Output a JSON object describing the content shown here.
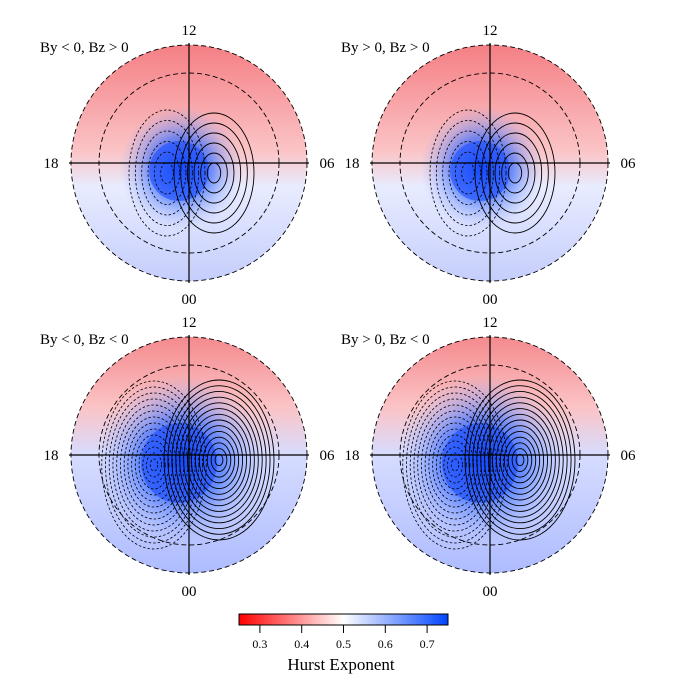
{
  "chart_data": {
    "type": "heatmap",
    "projection": "polar (magnetic local time)",
    "panels": [
      {
        "title": "By < 0, Bz > 0",
        "dipole": "dawn-shifted",
        "contours": "solid positive cell dawn, dashed negative cell dusk"
      },
      {
        "title": "By > 0, Bz > 0",
        "dipole": "dawn-shifted",
        "contours": "solid positive cell dawn, dashed negative cell dusk"
      },
      {
        "title": "By < 0, Bz < 0",
        "dipole": "two-cell",
        "contours": "solid positive cell dawn, dashed negative cell dusk"
      },
      {
        "title": "By > 0, Bz < 0",
        "dipole": "two-cell",
        "contours": "solid positive cell dawn, dashed negative cell dusk"
      }
    ],
    "mlt_labels": {
      "top": "12",
      "bottom": "00",
      "left": "18",
      "right": "06"
    },
    "colorbar": {
      "label": "Hurst Exponent",
      "range": [
        0.25,
        0.75
      ],
      "ticks": [
        "0.3",
        "0.4",
        "0.5",
        "0.6",
        "0.7"
      ],
      "colors": {
        "low": "#ff0000",
        "mid": "#ffffff",
        "high": "#0044ff"
      }
    },
    "pattern": {
      "dayside_outer_ring": 0.38,
      "polar_cap_center": 0.72,
      "nightside": 0.58
    }
  }
}
